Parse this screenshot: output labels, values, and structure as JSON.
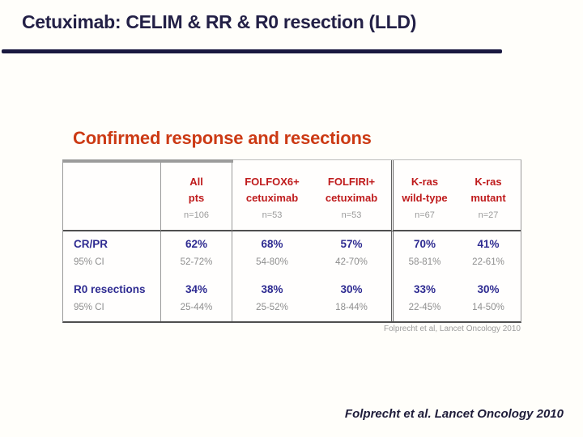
{
  "slide": {
    "title": "Cetuximab: CELIM & RR & R0 resection (LLD)",
    "footer_citation": "Folprecht et al. Lancet Oncology 2010"
  },
  "figure": {
    "title": "Confirmed response and resections",
    "source_note": "Folprecht et al, Lancet Oncology 2010"
  },
  "chart_data": {
    "type": "table",
    "title": "Confirmed response and resections",
    "columns": [
      {
        "line1": "All",
        "line2": "pts",
        "n": "n=106"
      },
      {
        "line1": "FOLFOX6+",
        "line2": "cetuximab",
        "n": "n=53"
      },
      {
        "line1": "FOLFIRI+",
        "line2": "cetuximab",
        "n": "n=53"
      },
      {
        "line1": "K-ras",
        "line2": "wild-type",
        "n": "n=67"
      },
      {
        "line1": "K-ras",
        "line2": "mutant",
        "n": "n=27"
      }
    ],
    "rows": [
      {
        "label": "CR/PR",
        "values": [
          "62%",
          "68%",
          "57%",
          "70%",
          "41%"
        ]
      },
      {
        "label": "95% CI",
        "values": [
          "52-72%",
          "54-80%",
          "42-70%",
          "58-81%",
          "22-61%"
        ]
      },
      {
        "label": "R0 resections",
        "values": [
          "34%",
          "38%",
          "30%",
          "33%",
          "30%"
        ]
      },
      {
        "label": "95% CI",
        "values": [
          "25-44%",
          "25-52%",
          "18-44%",
          "22-45%",
          "14-50%"
        ]
      }
    ],
    "source": "Folprecht et al, Lancet Oncology 2010"
  },
  "colors": {
    "title_navy": "#232046",
    "rule_navy": "#1a1940",
    "figure_title_red": "#cc3a14",
    "header_red": "#bf1b1c",
    "value_navy": "#2e2b91",
    "muted_gray": "#8e8e8e"
  }
}
